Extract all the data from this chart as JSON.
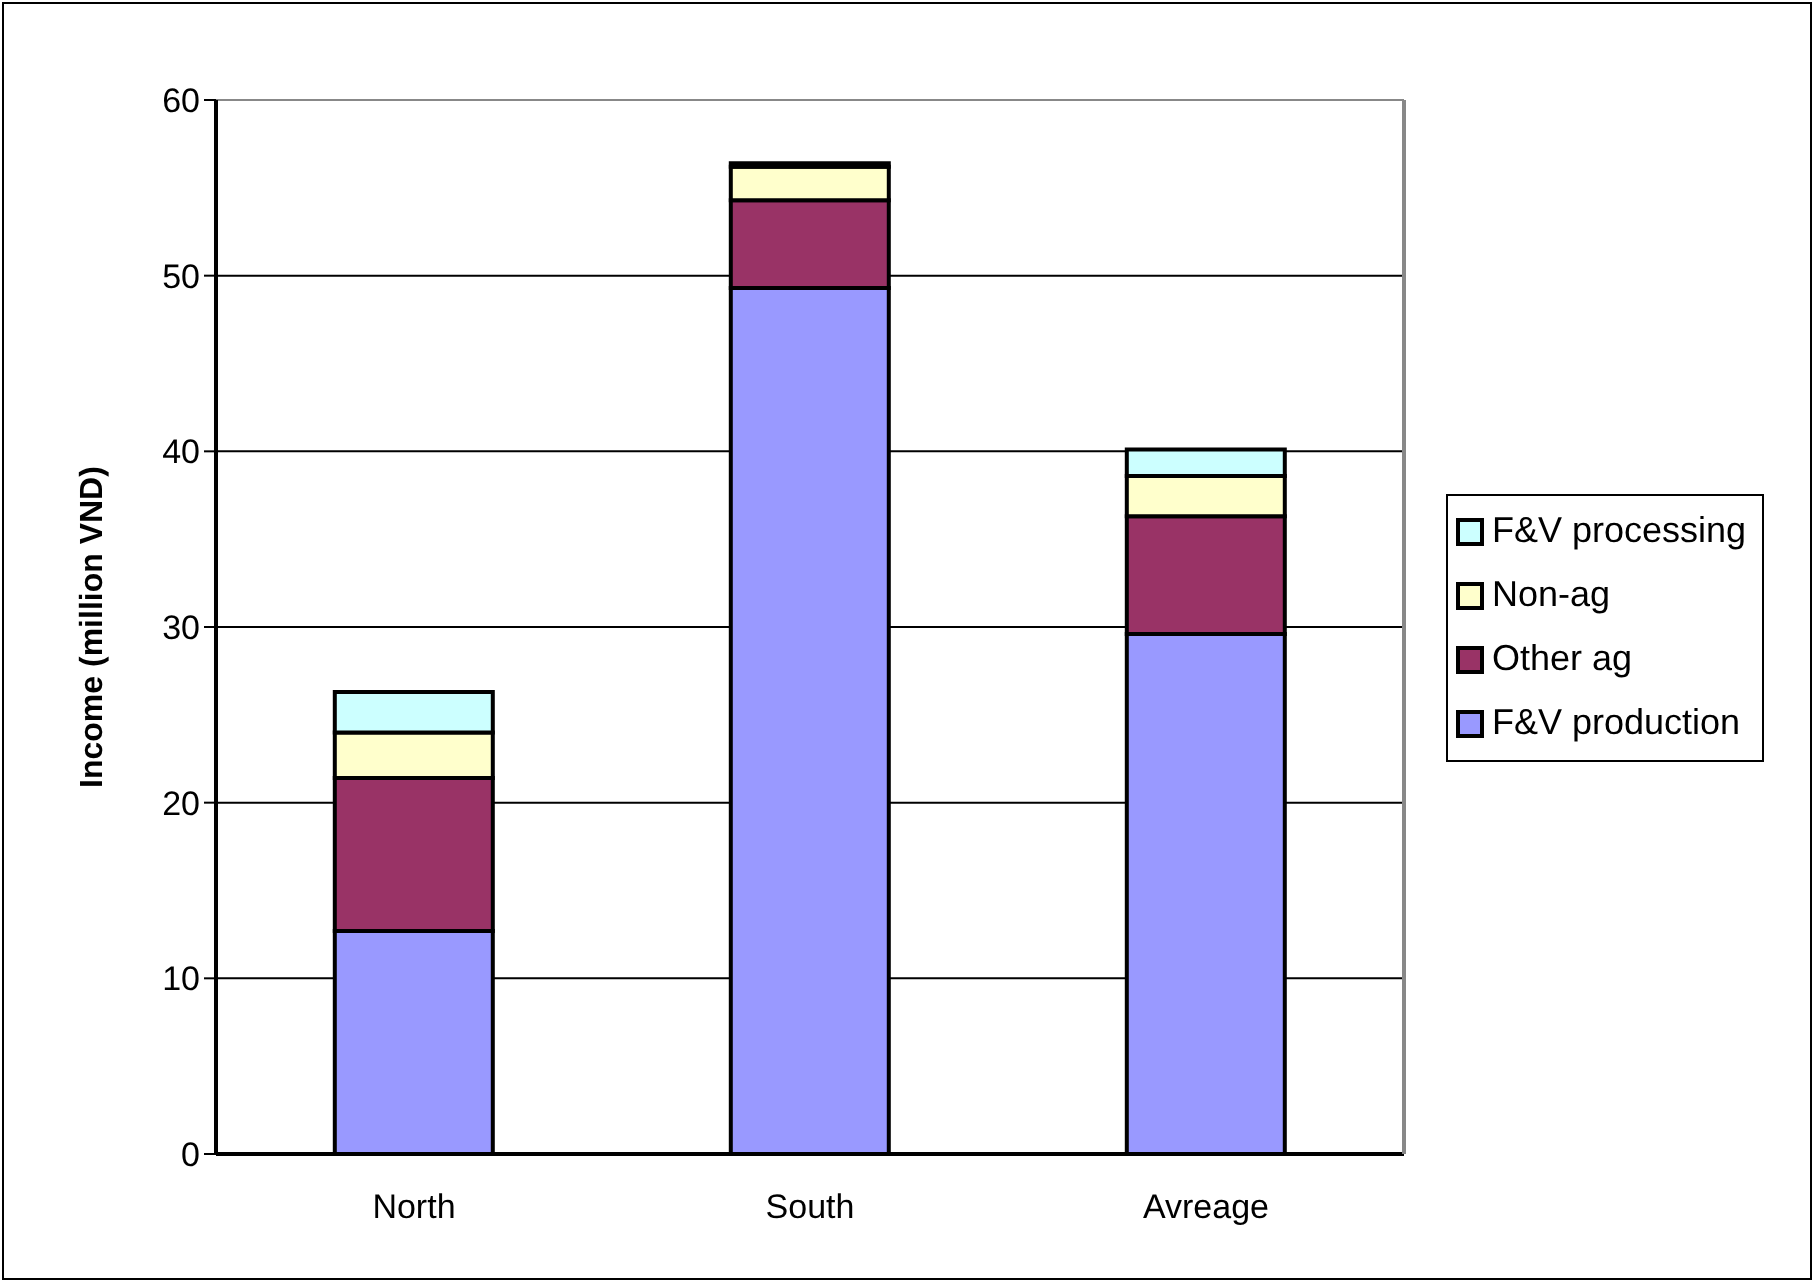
{
  "chart_data": {
    "type": "bar",
    "ylabel": "Income (million VND)",
    "categories": [
      "North",
      "South",
      "Avreage"
    ],
    "stacked": true,
    "series": [
      {
        "name": "F&V production",
        "color": "#9999ff",
        "values": [
          12.7,
          49.3,
          29.6
        ]
      },
      {
        "name": "Other ag",
        "color": "#993366",
        "values": [
          8.7,
          5.0,
          6.7
        ]
      },
      {
        "name": "Non-ag",
        "color": "#ffffcc",
        "values": [
          2.6,
          1.9,
          2.3
        ]
      },
      {
        "name": "F&V processing",
        "color": "#ccffff",
        "values": [
          2.3,
          0.2,
          1.5
        ]
      }
    ],
    "ylim": [
      0,
      60
    ],
    "yticks": [
      0,
      10,
      20,
      30,
      40,
      50,
      60
    ],
    "grid": "y",
    "legend": "right"
  }
}
